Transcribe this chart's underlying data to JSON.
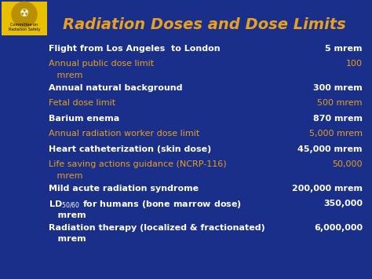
{
  "title": "Radiation Doses and Dose Limits",
  "title_color": "#E8A020",
  "bg_color": "#1a2f8a",
  "white_color": "#FFFFFF",
  "orange_color": "#E8A020",
  "figsize": [
    4.74,
    3.55
  ],
  "dpi": 100,
  "rows": [
    {
      "line1": "Flight from Los Angeles  to London",
      "line2": null,
      "val1": "5 mrem",
      "val2": null,
      "color": "white"
    },
    {
      "line1": "Annual public dose limit",
      "line2": "   mrem",
      "val1": "100",
      "val2": null,
      "color": "orange"
    },
    {
      "line1": "Annual natural background",
      "line2": null,
      "val1": "300 mrem",
      "val2": null,
      "color": "white"
    },
    {
      "line1": "Fetal dose limit",
      "line2": null,
      "val1": "500 mrem",
      "val2": null,
      "color": "orange"
    },
    {
      "line1": "Barium enema",
      "line2": null,
      "val1": "870 mrem",
      "val2": null,
      "color": "white"
    },
    {
      "line1": "Annual radiation worker dose limit",
      "line2": null,
      "val1": "5,000 mrem",
      "val2": null,
      "color": "orange"
    },
    {
      "line1": "Heart catheterization (skin dose)",
      "line2": null,
      "val1": "45,000 mrem",
      "val2": null,
      "color": "white"
    },
    {
      "line1": "Life saving actions guidance (NCRP-116)",
      "line2": "   mrem",
      "val1": "50,000",
      "val2": null,
      "color": "orange"
    },
    {
      "line1": "Mild acute radiation syndrome",
      "line2": null,
      "val1": "200,000 mrem",
      "val2": null,
      "color": "white"
    },
    {
      "line1": "LD$_{50/60}$ for humans (bone marrow dose)",
      "line2": "   mrem",
      "val1": "350,000",
      "val2": null,
      "color": "white"
    },
    {
      "line1": "Radiation therapy (localized & fractionated)",
      "line2": "   mrem",
      "val1": "6,000,000",
      "val2": null,
      "color": "white"
    }
  ],
  "logo_bg": "#E8C000",
  "logo_inner": "#B89000"
}
